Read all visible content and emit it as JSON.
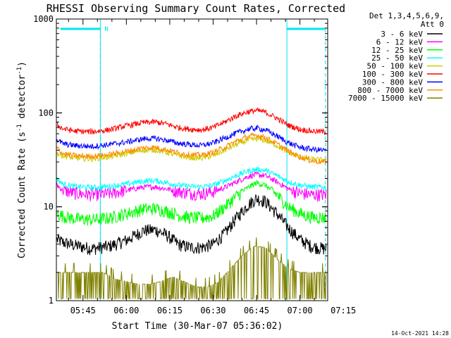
{
  "chart_data": {
    "type": "line",
    "title": "RHESSI Observing Summary Count Rates, Corrected",
    "xlabel": "Start Time (30-Mar-07 05:36:02)",
    "ylabel_main": "Corrected Count Rate (s",
    "ylabel_sup1": "-1",
    "ylabel_mid": " detector",
    "ylabel_sup2": "-1",
    "ylabel_end": ")",
    "y_scale": "log",
    "ylim": [
      1,
      1000
    ],
    "xlim_minutes": [
      5.8,
      99.6
    ],
    "x_tick_labels": [
      "05:45",
      "06:00",
      "06:15",
      "06:30",
      "06:45",
      "07:00",
      "07:15"
    ],
    "x_tick_minutes": [
      15,
      30,
      45,
      60,
      75,
      90,
      105
    ],
    "y_tick_labels": [
      "1",
      "10",
      "100",
      "1000"
    ],
    "y_tick_values": [
      1,
      10,
      100,
      1000
    ],
    "legend_header_1": "Det 1,3,4,5,6,9,",
    "legend_header_2": "Att 0",
    "legend_position": "top-right, outside plot",
    "night_marks_minutes": [
      21,
      85.5
    ],
    "saa_bars": [
      {
        "start_min": 7.2,
        "end_min": 21.0,
        "label": "N"
      },
      {
        "start_min": 85.5,
        "end_min": 98.8,
        "label": ""
      }
    ],
    "series": [
      {
        "name": "3 - 6 keV",
        "color": "#000000",
        "pts": [
          [
            6,
            4.5
          ],
          [
            8,
            4.2
          ],
          [
            12,
            3.9
          ],
          [
            18,
            3.6
          ],
          [
            24,
            3.8
          ],
          [
            30,
            4.4
          ],
          [
            36,
            5.6
          ],
          [
            40,
            5.7
          ],
          [
            44,
            5.0
          ],
          [
            48,
            4.0
          ],
          [
            52,
            3.7
          ],
          [
            56,
            3.7
          ],
          [
            60,
            4.0
          ],
          [
            64,
            5.2
          ],
          [
            68,
            7.6
          ],
          [
            72,
            10.5
          ],
          [
            75,
            12.3
          ],
          [
            78,
            11.5
          ],
          [
            82,
            8.5
          ],
          [
            86,
            6.0
          ],
          [
            90,
            4.5
          ],
          [
            94,
            3.8
          ],
          [
            98,
            3.6
          ]
        ]
      },
      {
        "name": "6 - 12 keV",
        "color": "#ff00ff",
        "pts": [
          [
            6,
            17
          ],
          [
            8,
            15
          ],
          [
            12,
            14
          ],
          [
            18,
            13.5
          ],
          [
            24,
            13.8
          ],
          [
            30,
            15
          ],
          [
            36,
            16.2
          ],
          [
            40,
            16.3
          ],
          [
            44,
            15.5
          ],
          [
            48,
            14.6
          ],
          [
            52,
            14
          ],
          [
            56,
            13.8
          ],
          [
            60,
            14.5
          ],
          [
            64,
            16
          ],
          [
            68,
            18.5
          ],
          [
            72,
            21
          ],
          [
            75,
            22
          ],
          [
            78,
            21.5
          ],
          [
            82,
            18.5
          ],
          [
            86,
            15.5
          ],
          [
            90,
            14
          ],
          [
            94,
            13.5
          ],
          [
            98,
            13.5
          ]
        ]
      },
      {
        "name": "12 - 25 keV",
        "color": "#00ff00",
        "pts": [
          [
            6,
            8.5
          ],
          [
            8,
            8
          ],
          [
            12,
            7.5
          ],
          [
            18,
            7.3
          ],
          [
            24,
            7.6
          ],
          [
            30,
            8.5
          ],
          [
            36,
            9.5
          ],
          [
            40,
            9.6
          ],
          [
            44,
            9.0
          ],
          [
            48,
            8.2
          ],
          [
            52,
            7.7
          ],
          [
            56,
            7.6
          ],
          [
            60,
            8.0
          ],
          [
            64,
            10
          ],
          [
            68,
            13
          ],
          [
            72,
            16
          ],
          [
            75,
            18
          ],
          [
            78,
            17
          ],
          [
            82,
            13.5
          ],
          [
            86,
            10
          ],
          [
            90,
            8.5
          ],
          [
            94,
            7.8
          ],
          [
            98,
            7.7
          ]
        ]
      },
      {
        "name": "25 - 50 keV",
        "color": "#00ffff",
        "pts": [
          [
            6,
            20
          ],
          [
            8,
            17.5
          ],
          [
            12,
            16.5
          ],
          [
            18,
            16
          ],
          [
            24,
            16.5
          ],
          [
            30,
            17.5
          ],
          [
            36,
            18.8
          ],
          [
            40,
            19
          ],
          [
            44,
            18
          ],
          [
            48,
            17
          ],
          [
            52,
            16.5
          ],
          [
            56,
            16.3
          ],
          [
            60,
            17
          ],
          [
            64,
            19
          ],
          [
            68,
            21.5
          ],
          [
            72,
            24
          ],
          [
            75,
            25
          ],
          [
            78,
            24.5
          ],
          [
            82,
            21.5
          ],
          [
            86,
            18.5
          ],
          [
            90,
            17
          ],
          [
            94,
            16.3
          ],
          [
            98,
            16.2
          ]
        ]
      },
      {
        "name": "50 - 100 keV",
        "color": "#cccc00",
        "pts": [
          [
            6,
            37
          ],
          [
            8,
            35
          ],
          [
            12,
            33
          ],
          [
            18,
            32.5
          ],
          [
            24,
            34
          ],
          [
            30,
            37
          ],
          [
            36,
            40
          ],
          [
            40,
            40.5
          ],
          [
            44,
            38
          ],
          [
            48,
            35
          ],
          [
            52,
            33.5
          ],
          [
            56,
            33
          ],
          [
            60,
            35
          ],
          [
            64,
            40
          ],
          [
            68,
            46
          ],
          [
            72,
            51
          ],
          [
            75,
            53
          ],
          [
            78,
            51
          ],
          [
            82,
            45
          ],
          [
            86,
            38
          ],
          [
            90,
            34
          ],
          [
            94,
            32
          ],
          [
            98,
            31.5
          ]
        ]
      },
      {
        "name": "100 - 300 keV",
        "color": "#ff0000",
        "pts": [
          [
            6,
            75
          ],
          [
            8,
            68
          ],
          [
            12,
            64
          ],
          [
            18,
            63
          ],
          [
            24,
            66
          ],
          [
            30,
            73
          ],
          [
            36,
            79
          ],
          [
            40,
            80
          ],
          [
            44,
            76
          ],
          [
            48,
            70
          ],
          [
            52,
            67
          ],
          [
            56,
            66
          ],
          [
            60,
            70
          ],
          [
            64,
            80
          ],
          [
            68,
            93
          ],
          [
            72,
            103
          ],
          [
            75,
            106
          ],
          [
            78,
            102
          ],
          [
            82,
            88
          ],
          [
            86,
            74
          ],
          [
            90,
            67
          ],
          [
            94,
            64
          ],
          [
            98,
            63
          ]
        ]
      },
      {
        "name": "300 - 800 keV",
        "color": "#0000ff",
        "pts": [
          [
            6,
            52
          ],
          [
            8,
            47
          ],
          [
            12,
            45
          ],
          [
            18,
            44
          ],
          [
            24,
            46
          ],
          [
            30,
            49
          ],
          [
            36,
            53
          ],
          [
            40,
            53.5
          ],
          [
            44,
            51
          ],
          [
            48,
            47.5
          ],
          [
            52,
            46
          ],
          [
            56,
            45
          ],
          [
            60,
            48
          ],
          [
            64,
            54
          ],
          [
            68,
            61
          ],
          [
            72,
            67
          ],
          [
            75,
            69
          ],
          [
            78,
            66
          ],
          [
            82,
            57
          ],
          [
            86,
            48
          ],
          [
            90,
            43
          ],
          [
            94,
            41
          ],
          [
            98,
            40
          ]
        ]
      },
      {
        "name": "800 - 7000 keV",
        "color": "#ff8c00",
        "pts": [
          [
            6,
            42
          ],
          [
            8,
            37
          ],
          [
            12,
            35
          ],
          [
            18,
            34.5
          ],
          [
            24,
            36
          ],
          [
            30,
            39
          ],
          [
            36,
            42.5
          ],
          [
            40,
            43
          ],
          [
            44,
            40.5
          ],
          [
            48,
            37.5
          ],
          [
            52,
            36
          ],
          [
            56,
            35.5
          ],
          [
            60,
            38
          ],
          [
            64,
            43
          ],
          [
            68,
            50
          ],
          [
            72,
            56
          ],
          [
            75,
            58
          ],
          [
            78,
            55
          ],
          [
            82,
            47
          ],
          [
            86,
            39
          ],
          [
            90,
            34
          ],
          [
            94,
            31
          ],
          [
            98,
            30
          ]
        ]
      },
      {
        "name": "7000 - 15000 keV",
        "color": "#808000",
        "pts": [
          [
            6,
            2.0
          ],
          [
            10,
            2.0
          ],
          [
            14,
            2.0
          ],
          [
            18,
            2.0
          ],
          [
            22,
            2.0
          ],
          [
            26,
            1.7
          ],
          [
            30,
            1.6
          ],
          [
            34,
            1.5
          ],
          [
            38,
            1.5
          ],
          [
            42,
            1.6
          ],
          [
            46,
            1.8
          ],
          [
            50,
            1.6
          ],
          [
            54,
            1.4
          ],
          [
            58,
            1.4
          ],
          [
            62,
            1.6
          ],
          [
            66,
            2.2
          ],
          [
            70,
            3.0
          ],
          [
            74,
            3.8
          ],
          [
            78,
            3.7
          ],
          [
            82,
            2.8
          ],
          [
            86,
            2.2
          ],
          [
            90,
            2.0
          ],
          [
            94,
            2.0
          ],
          [
            98,
            2.0
          ]
        ]
      }
    ]
  },
  "footer_date": "14-Oct-2021 14:28"
}
